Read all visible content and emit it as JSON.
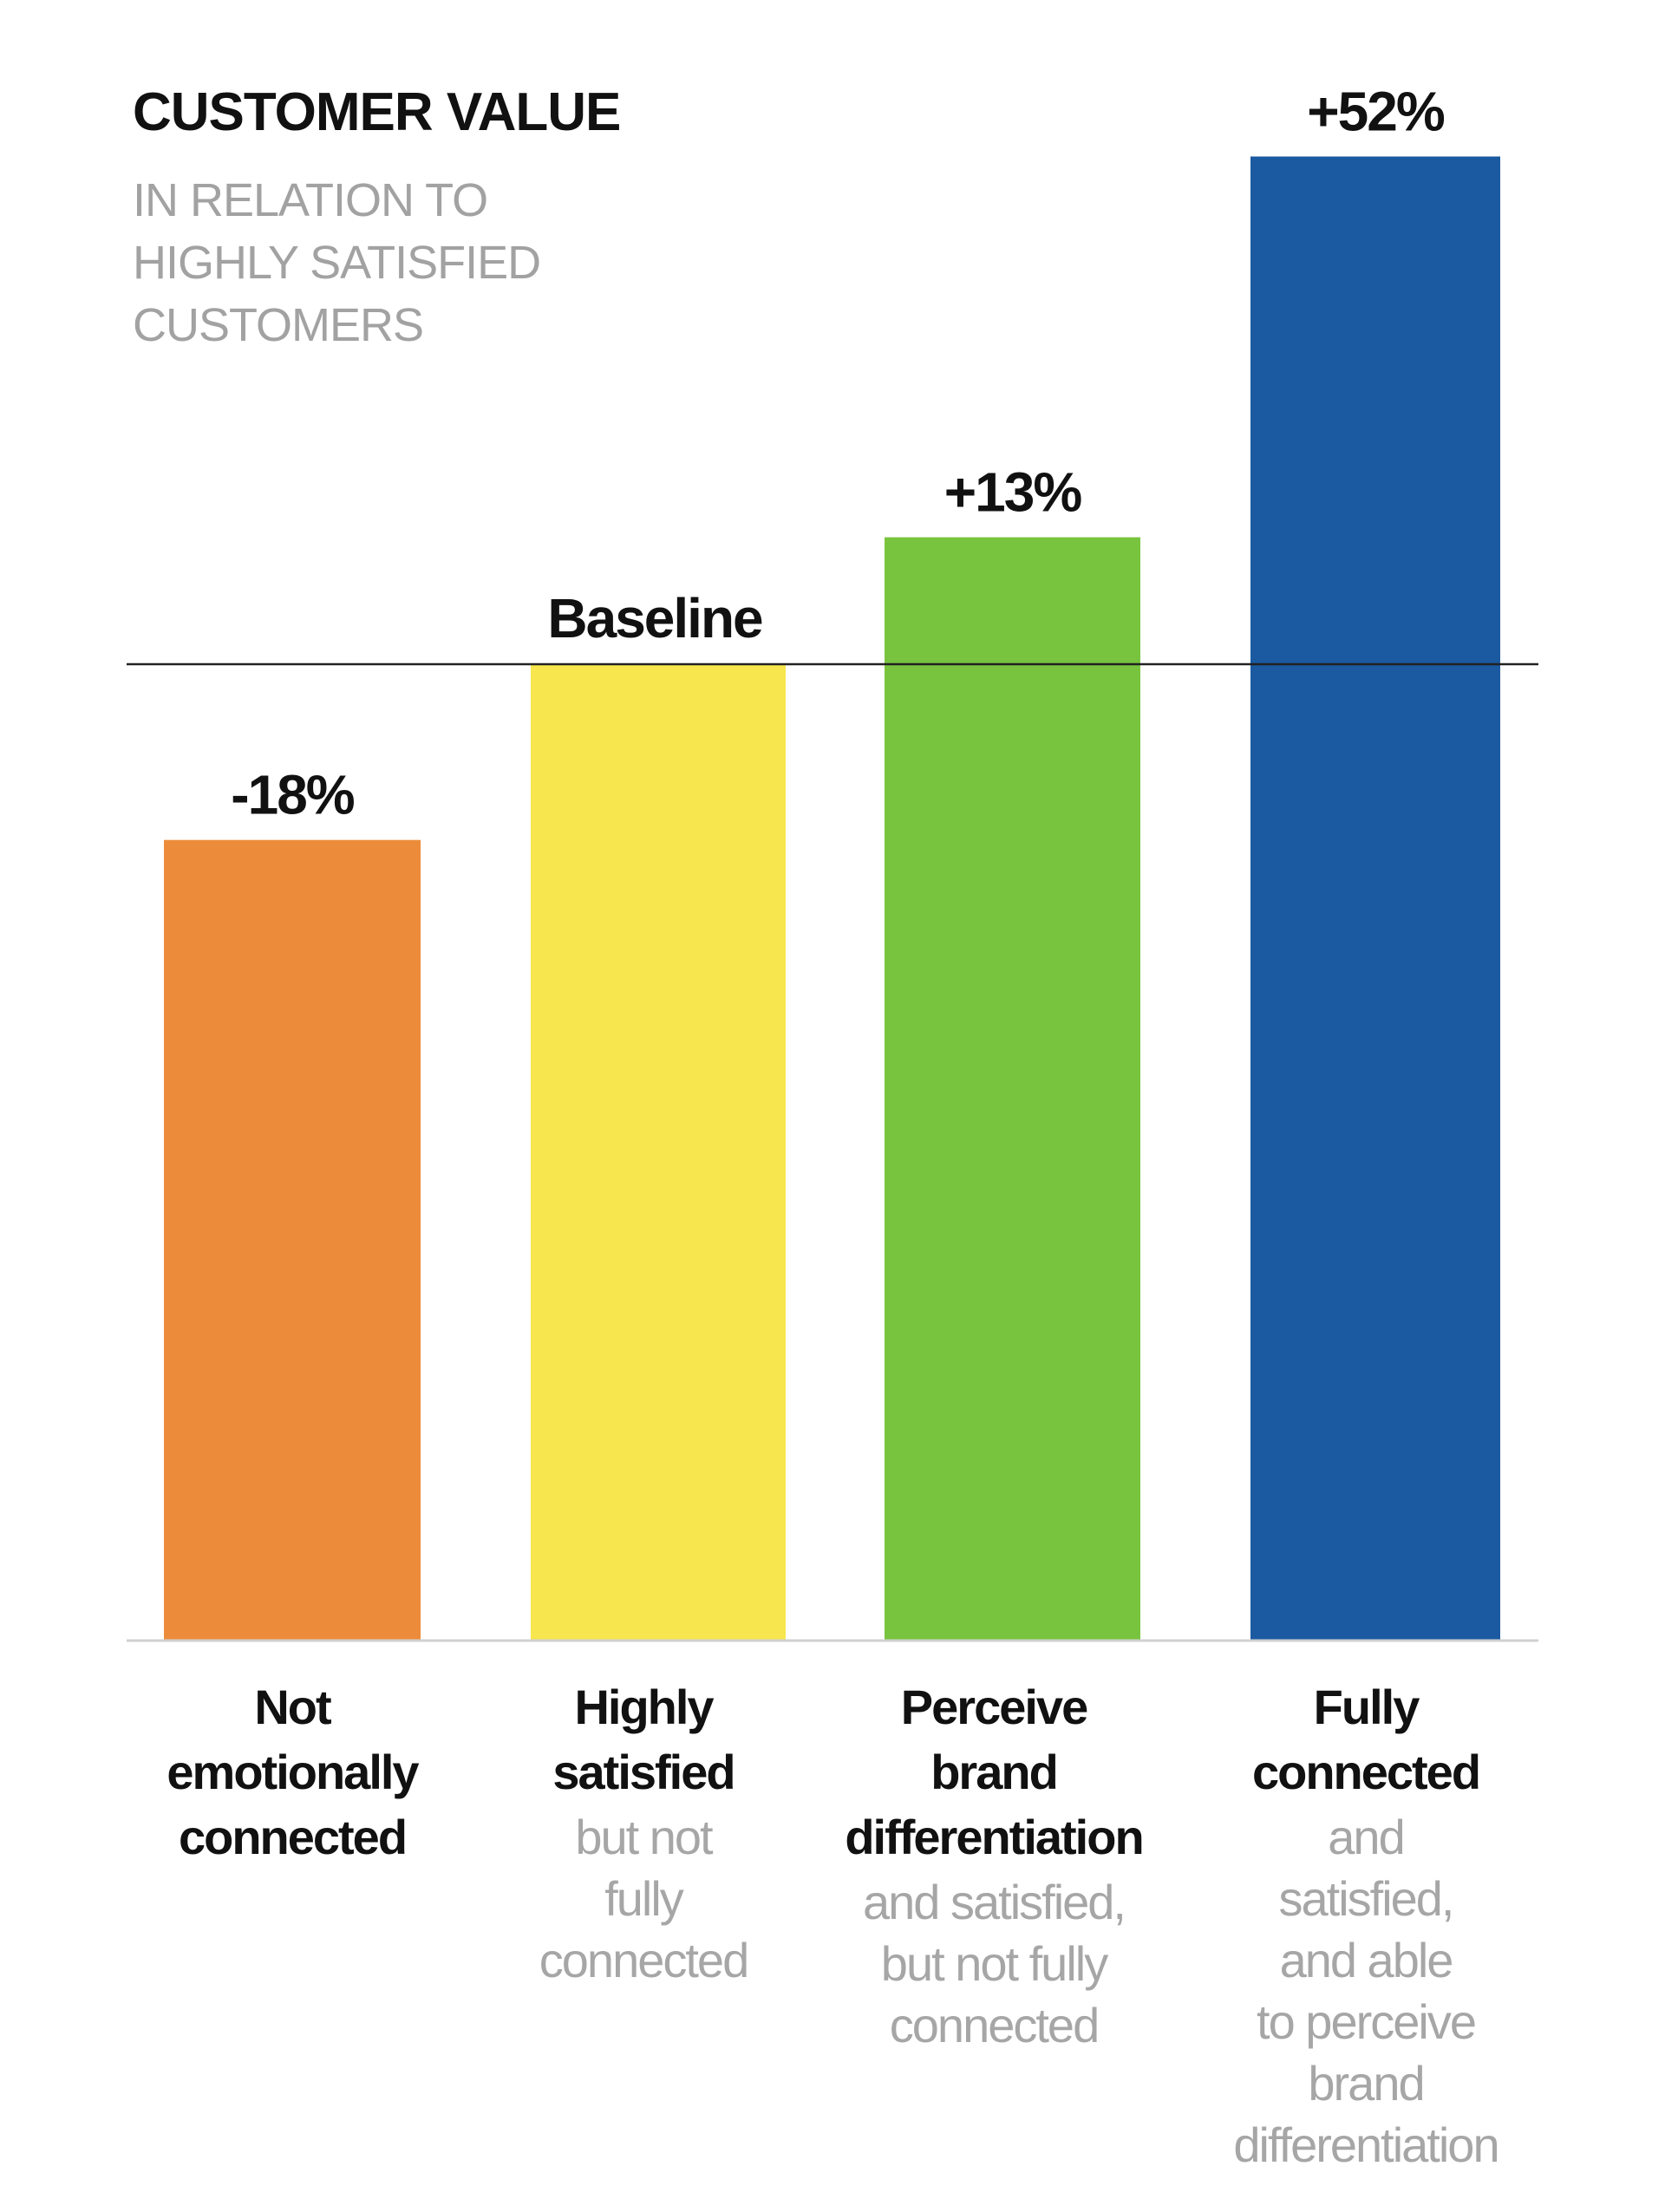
{
  "chart_data": {
    "type": "bar",
    "title": "CUSTOMER VALUE",
    "subtitle": [
      "IN RELATION TO",
      "HIGHLY SATISFIED",
      "CUSTOMERS"
    ],
    "baseline_label": "Baseline",
    "categories": [
      {
        "bold": [
          "Not",
          "emotionally",
          "connected"
        ],
        "light": []
      },
      {
        "bold": [
          "Highly",
          "satisfied"
        ],
        "light": [
          "but not",
          "fully",
          "connected"
        ]
      },
      {
        "bold": [
          "Perceive",
          "brand",
          "differentiation"
        ],
        "light": [
          "and satisfied,",
          "but not fully",
          "connected"
        ]
      },
      {
        "bold": [
          "Fully",
          "connected"
        ],
        "light": [
          "and",
          "satisfied,",
          "and able",
          "to perceive",
          "brand",
          "differentiation"
        ]
      }
    ],
    "values": [
      -18,
      0,
      13,
      52
    ],
    "value_labels": [
      "-18%",
      "",
      "+13%",
      "+52%"
    ],
    "colors": [
      "#ec8c3a",
      "#f7e64d",
      "#78c43e",
      "#1b5aa0"
    ],
    "ylabel": "",
    "xlabel": "",
    "grid": false
  }
}
